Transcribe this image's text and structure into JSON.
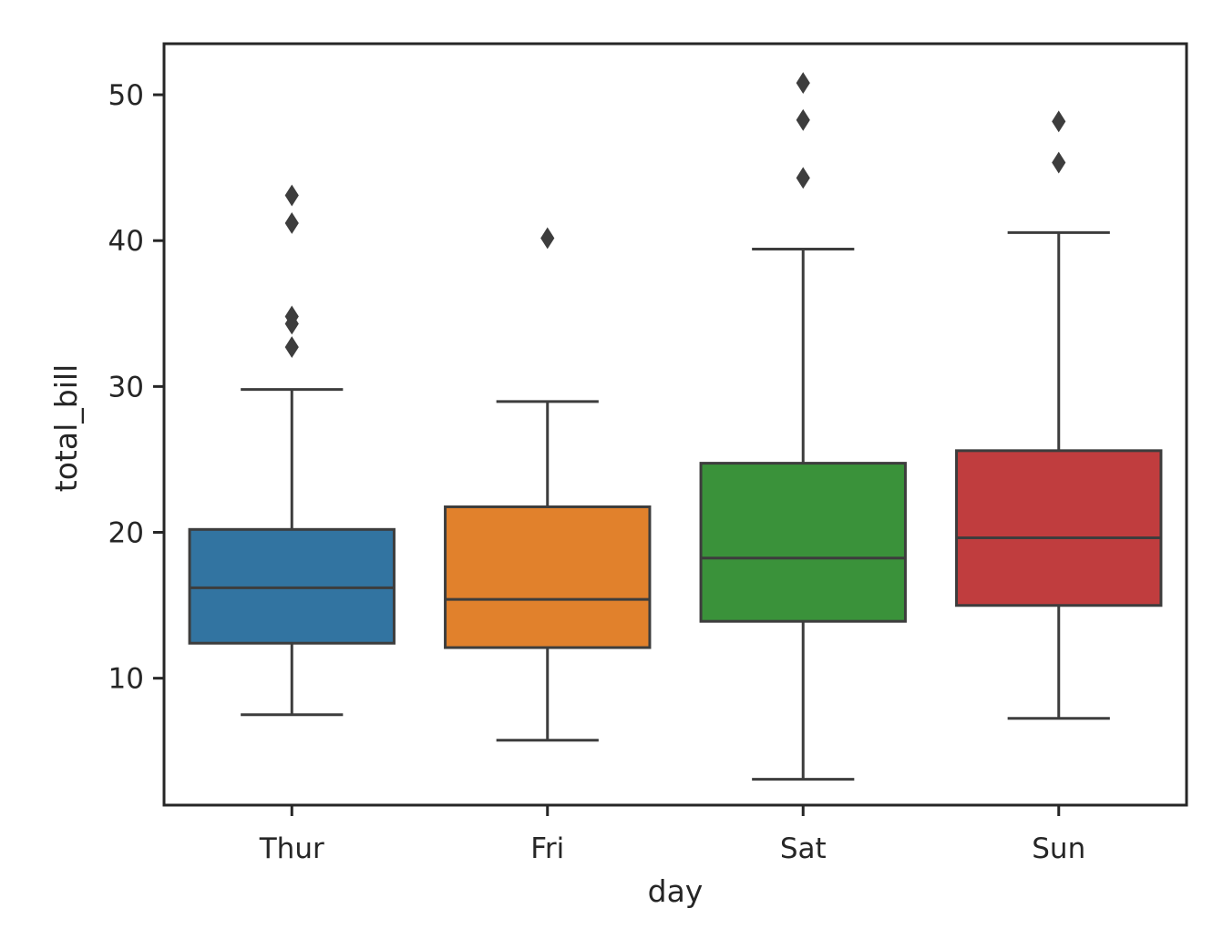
{
  "chart_data": {
    "type": "box",
    "title": "",
    "xlabel": "day",
    "ylabel": "total_bill",
    "categories": [
      "Thur",
      "Fri",
      "Sat",
      "Sun"
    ],
    "ylim": [
      1.3,
      53.5
    ],
    "yticks": [
      10,
      20,
      30,
      40,
      50
    ],
    "grid": false,
    "legend": "none",
    "colors": [
      "#3274a1",
      "#e1812c",
      "#3a923a",
      "#c03d3e"
    ],
    "edge_color": "#3d3d3d",
    "boxes": [
      {
        "category": "Thur",
        "whisker_low": 7.5,
        "q1": 12.4,
        "median": 16.2,
        "q3": 20.2,
        "whisker_high": 29.8,
        "outliers": [
          32.7,
          34.3,
          34.8,
          41.2,
          43.1
        ]
      },
      {
        "category": "Fri",
        "whisker_low": 5.75,
        "q1": 12.1,
        "median": 15.4,
        "q3": 21.75,
        "whisker_high": 28.97,
        "outliers": [
          40.17
        ]
      },
      {
        "category": "Sat",
        "whisker_low": 3.07,
        "q1": 13.9,
        "median": 18.24,
        "q3": 24.74,
        "whisker_high": 39.42,
        "outliers": [
          44.3,
          48.27,
          50.81
        ]
      },
      {
        "category": "Sun",
        "whisker_low": 7.25,
        "q1": 14.99,
        "median": 19.63,
        "q3": 25.6,
        "whisker_high": 40.55,
        "outliers": [
          45.35,
          48.17
        ]
      }
    ]
  }
}
